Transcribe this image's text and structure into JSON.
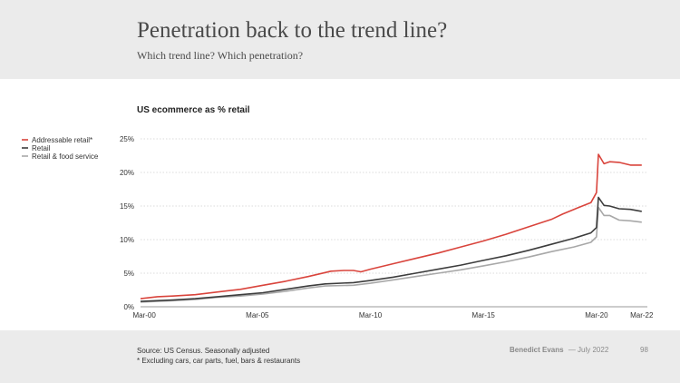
{
  "header": {
    "title": "Penetration back to the trend line?",
    "subtitle": "Which trend line? Which penetration?"
  },
  "footer": {
    "source": "Source: US Census. Seasonally adjusted",
    "note": "* Excluding cars, car parts, fuel, bars & restaurants",
    "author": "Benedict Evans",
    "date": "— July 2022",
    "page": "98"
  },
  "chart_data": {
    "type": "line",
    "title": "US ecommerce as % retail",
    "xlabel": "",
    "ylabel": "",
    "x_start": "2000-01",
    "x_end": "2022-06",
    "x_ticks": [
      {
        "label": "Mar-00",
        "x": "2000-03"
      },
      {
        "label": "Mar-05",
        "x": "2005-03"
      },
      {
        "label": "Mar-10",
        "x": "2010-03"
      },
      {
        "label": "Mar-15",
        "x": "2015-03"
      },
      {
        "label": "Mar-20",
        "x": "2020-03"
      },
      {
        "label": "Mar-22",
        "x": "2022-03"
      }
    ],
    "ylim": [
      0,
      25
    ],
    "y_ticks": [
      {
        "label": "0%",
        "value": 0
      },
      {
        "label": "5%",
        "value": 5
      },
      {
        "label": "10%",
        "value": 10
      },
      {
        "label": "15%",
        "value": 15
      },
      {
        "label": "20%",
        "value": 20
      },
      {
        "label": "25%",
        "value": 25
      }
    ],
    "grid": "horizontal dotted",
    "legend_position": "left",
    "series": [
      {
        "name": "Addressable retail*",
        "color": "#d9443c",
        "points": [
          [
            "2000-01",
            1.2
          ],
          [
            "2000-10",
            1.5
          ],
          [
            "2001-06",
            1.6
          ],
          [
            "2002-06",
            1.8
          ],
          [
            "2003-06",
            2.2
          ],
          [
            "2004-06",
            2.6
          ],
          [
            "2005-06",
            3.2
          ],
          [
            "2006-06",
            3.8
          ],
          [
            "2007-06",
            4.5
          ],
          [
            "2008-03",
            5.1
          ],
          [
            "2008-06",
            5.3
          ],
          [
            "2009-01",
            5.4
          ],
          [
            "2009-06",
            5.4
          ],
          [
            "2009-10",
            5.2
          ],
          [
            "2010-03",
            5.6
          ],
          [
            "2011-03",
            6.4
          ],
          [
            "2012-03",
            7.2
          ],
          [
            "2013-03",
            8.0
          ],
          [
            "2014-03",
            8.9
          ],
          [
            "2015-03",
            9.8
          ],
          [
            "2016-03",
            10.8
          ],
          [
            "2017-03",
            11.9
          ],
          [
            "2018-03",
            13.0
          ],
          [
            "2018-09",
            13.8
          ],
          [
            "2019-03",
            14.5
          ],
          [
            "2019-12",
            15.5
          ],
          [
            "2020-03",
            17.0
          ],
          [
            "2020-04",
            22.7
          ],
          [
            "2020-07",
            21.3
          ],
          [
            "2020-10",
            21.6
          ],
          [
            "2021-03",
            21.5
          ],
          [
            "2021-09",
            21.1
          ],
          [
            "2022-03",
            21.1
          ]
        ]
      },
      {
        "name": "Retail",
        "color": "#3d3d3d",
        "points": [
          [
            "2000-01",
            0.8
          ],
          [
            "2001-06",
            1.0
          ],
          [
            "2002-06",
            1.2
          ],
          [
            "2003-06",
            1.5
          ],
          [
            "2004-06",
            1.8
          ],
          [
            "2005-06",
            2.1
          ],
          [
            "2006-06",
            2.6
          ],
          [
            "2007-06",
            3.1
          ],
          [
            "2008-03",
            3.4
          ],
          [
            "2009-06",
            3.6
          ],
          [
            "2010-03",
            3.9
          ],
          [
            "2011-03",
            4.4
          ],
          [
            "2012-03",
            5.0
          ],
          [
            "2013-03",
            5.6
          ],
          [
            "2014-03",
            6.2
          ],
          [
            "2015-03",
            6.9
          ],
          [
            "2016-03",
            7.6
          ],
          [
            "2017-03",
            8.4
          ],
          [
            "2018-03",
            9.3
          ],
          [
            "2019-03",
            10.2
          ],
          [
            "2019-12",
            11.0
          ],
          [
            "2020-03",
            11.8
          ],
          [
            "2020-04",
            16.3
          ],
          [
            "2020-07",
            15.1
          ],
          [
            "2020-10",
            15.0
          ],
          [
            "2021-03",
            14.6
          ],
          [
            "2021-09",
            14.5
          ],
          [
            "2022-03",
            14.2
          ]
        ]
      },
      {
        "name": "Retail & food service",
        "color": "#a8a8a8",
        "points": [
          [
            "2000-01",
            0.7
          ],
          [
            "2001-06",
            0.9
          ],
          [
            "2002-06",
            1.1
          ],
          [
            "2003-06",
            1.4
          ],
          [
            "2004-06",
            1.6
          ],
          [
            "2005-06",
            1.9
          ],
          [
            "2006-06",
            2.3
          ],
          [
            "2007-06",
            2.8
          ],
          [
            "2008-03",
            3.1
          ],
          [
            "2009-06",
            3.2
          ],
          [
            "2010-03",
            3.5
          ],
          [
            "2011-03",
            4.0
          ],
          [
            "2012-03",
            4.5
          ],
          [
            "2013-03",
            5.0
          ],
          [
            "2014-03",
            5.5
          ],
          [
            "2015-03",
            6.1
          ],
          [
            "2016-03",
            6.7
          ],
          [
            "2017-03",
            7.4
          ],
          [
            "2018-03",
            8.2
          ],
          [
            "2019-03",
            8.9
          ],
          [
            "2019-12",
            9.6
          ],
          [
            "2020-03",
            10.4
          ],
          [
            "2020-04",
            14.8
          ],
          [
            "2020-07",
            13.6
          ],
          [
            "2020-10",
            13.6
          ],
          [
            "2021-03",
            12.9
          ],
          [
            "2021-09",
            12.8
          ],
          [
            "2022-03",
            12.6
          ]
        ]
      }
    ]
  }
}
